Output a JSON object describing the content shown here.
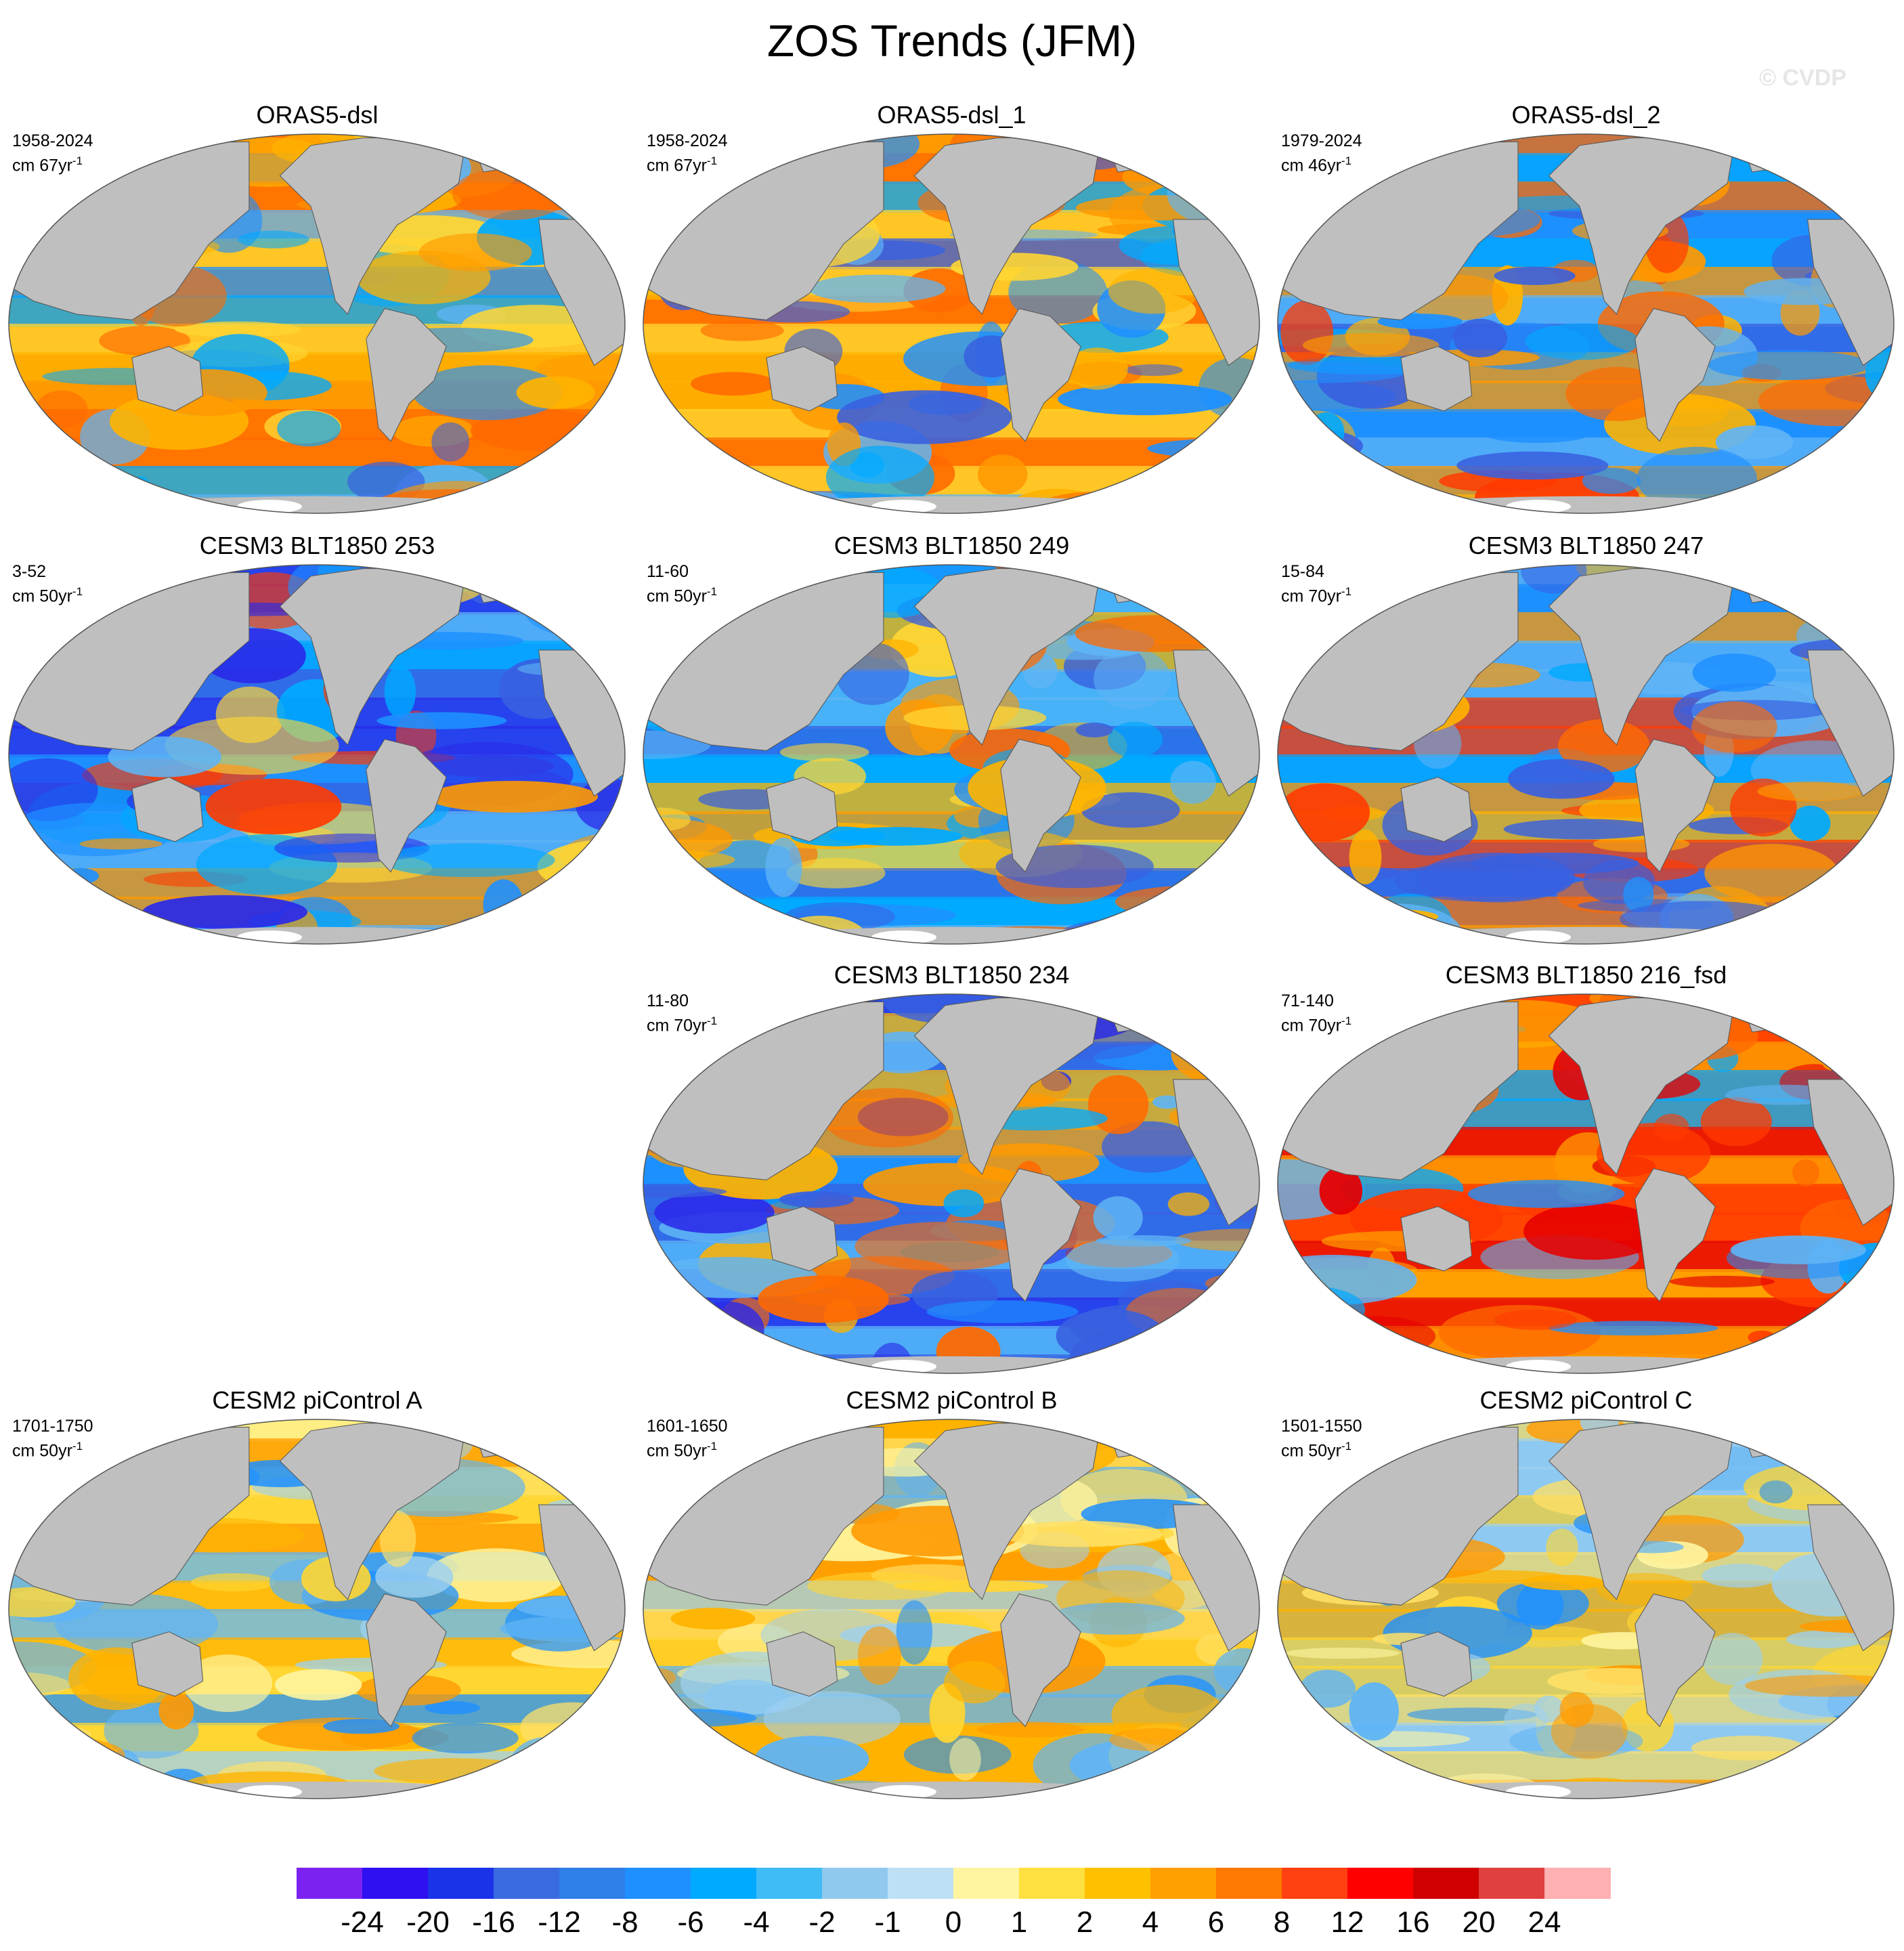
{
  "title": "ZOS Trends (JFM)",
  "watermark": "© CVDP",
  "colors": {
    "land": "#bfbfbf",
    "antarctica": "#ffffff",
    "outline": "#555555"
  },
  "panels": [
    {
      "title": "ORAS5-dsl",
      "years": "1958-2024",
      "units": "cm 67yr",
      "sup": "-1",
      "palette": [
        "#ff9900",
        "#ffb300",
        "#1e90ff",
        "#00aaff",
        "#ff6a00",
        "#5fb4f5",
        "#ffd633",
        "#3860e0"
      ]
    },
    {
      "title": "ORAS5-dsl_1",
      "years": "1958-2024",
      "units": "cm 67yr",
      "sup": "-1",
      "palette": [
        "#ff9900",
        "#ffb300",
        "#1e90ff",
        "#00aaff",
        "#ff6a00",
        "#5fb4f5",
        "#ffd633",
        "#3860e0"
      ]
    },
    {
      "title": "ORAS5-dsl_2",
      "years": "1979-2024",
      "units": "cm 46yr",
      "sup": "-1",
      "palette": [
        "#1e90ff",
        "#00aaff",
        "#ff9900",
        "#ff6a00",
        "#ffb300",
        "#5fb4f5",
        "#ff3a00",
        "#3860e0"
      ]
    },
    {
      "title": "CESM3 BLT1850 253",
      "years": "3-52",
      "units": "cm 50yr",
      "sup": "-1",
      "palette": [
        "#1e90ff",
        "#00aaff",
        "#3860e0",
        "#5fb4f5",
        "#ffd633",
        "#ff9900",
        "#2a2ae8",
        "#ff3a00"
      ]
    },
    {
      "title": "CESM3 BLT1850 249",
      "years": "11-60",
      "units": "cm 50yr",
      "sup": "-1",
      "palette": [
        "#00aaff",
        "#1e90ff",
        "#ffb300",
        "#5fb4f5",
        "#ff9900",
        "#ffd633",
        "#3860e0",
        "#ff6a00"
      ]
    },
    {
      "title": "CESM3 BLT1850 247",
      "years": "15-84",
      "units": "cm 70yr",
      "sup": "-1",
      "palette": [
        "#1e90ff",
        "#00aaff",
        "#ff9900",
        "#ff6a00",
        "#5fb4f5",
        "#ffb300",
        "#3860e0",
        "#ff3a00"
      ]
    },
    {
      "title": "CESM3 BLT1850 234",
      "years": "11-80",
      "units": "cm 70yr",
      "sup": "-1",
      "palette": [
        "#1e90ff",
        "#00aaff",
        "#3860e0",
        "#ff9900",
        "#ff6a00",
        "#ffb300",
        "#5fb4f5",
        "#2a2ae8"
      ]
    },
    {
      "title": "CESM3 BLT1850 216_fsd",
      "years": "71-140",
      "units": "cm 70yr",
      "sup": "-1",
      "palette": [
        "#ff6a00",
        "#ff9900",
        "#ff3a00",
        "#5fb4f5",
        "#ffb300",
        "#1e90ff",
        "#00aaff",
        "#e60000"
      ]
    },
    {
      "title": "CESM2 piControl A",
      "years": "1701-1750",
      "units": "cm 50yr",
      "sup": "-1",
      "palette": [
        "#ffd633",
        "#ffe066",
        "#ffb300",
        "#5fb4f5",
        "#9dd0f0",
        "#fff5a0",
        "#1e90ff",
        "#ff9900"
      ]
    },
    {
      "title": "CESM2 piControl B",
      "years": "1601-1650",
      "units": "cm 50yr",
      "sup": "-1",
      "palette": [
        "#ffb300",
        "#5fb4f5",
        "#ffd633",
        "#9dd0f0",
        "#ffe066",
        "#fff5a0",
        "#1e90ff",
        "#ff9900"
      ]
    },
    {
      "title": "CESM2 piControl C",
      "years": "1501-1550",
      "units": "cm 50yr",
      "sup": "-1",
      "palette": [
        "#5fb4f5",
        "#9dd0f0",
        "#ffd633",
        "#ffe066",
        "#ffb300",
        "#fff5a0",
        "#1e90ff",
        "#ff9900"
      ]
    }
  ],
  "colorbar": {
    "colors": [
      "#7c22f0",
      "#2f10f0",
      "#1a33e8",
      "#3a6ae0",
      "#2f7fe8",
      "#1f90ff",
      "#00aaff",
      "#3fbcf5",
      "#90c8ee",
      "#bde0f4",
      "#fff5a0",
      "#ffe040",
      "#ffc000",
      "#ffa000",
      "#ff7a00",
      "#ff4010",
      "#ff0000",
      "#d00000",
      "#e04040",
      "#ffb0b0"
    ],
    "labels": [
      "-24",
      "-20",
      "-16",
      "-12",
      "-8",
      "-6",
      "-4",
      "-2",
      "-1",
      "0",
      "1",
      "2",
      "4",
      "6",
      "8",
      "12",
      "16",
      "20",
      "24"
    ]
  }
}
